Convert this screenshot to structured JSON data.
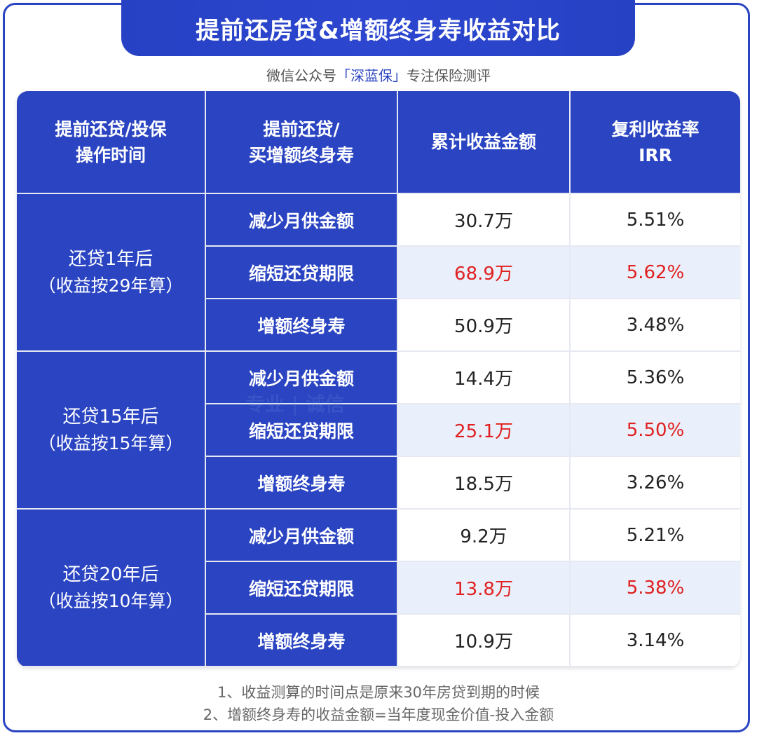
{
  "title": "提前还房贷&增额终身寿收益对比",
  "subtitle": {
    "prefix": "微信公众号",
    "brand": "「深蓝保」",
    "suffix": "专注保险测评"
  },
  "watermark": "专业 | 诚信",
  "headers": [
    [
      "提前还贷/投保",
      "操作时间"
    ],
    [
      "提前还贷/",
      "买增额终身寿"
    ],
    [
      "累计收益金额"
    ],
    [
      "复利收益率",
      "IRR"
    ]
  ],
  "groups": [
    {
      "title": "还贷1年后",
      "sub": "（收益按29年算）",
      "rows": [
        {
          "op": "减少月供金额",
          "amount": "30.7万",
          "irr": "5.51%"
        },
        {
          "op": "缩短还贷期限",
          "amount": "68.9万",
          "irr": "5.62%"
        },
        {
          "op": "增额终身寿",
          "amount": "50.9万",
          "irr": "3.48%"
        }
      ]
    },
    {
      "title": "还贷15年后",
      "sub": "（收益按15年算）",
      "rows": [
        {
          "op": "减少月供金额",
          "amount": "14.4万",
          "irr": "5.36%"
        },
        {
          "op": "缩短还贷期限",
          "amount": "25.1万",
          "irr": "5.50%"
        },
        {
          "op": "增额终身寿",
          "amount": "18.5万",
          "irr": "3.26%"
        }
      ]
    },
    {
      "title": "还贷20年后",
      "sub": "（收益按10年算）",
      "rows": [
        {
          "op": "减少月供金额",
          "amount": "9.2万",
          "irr": "5.21%"
        },
        {
          "op": "缩短还贷期限",
          "amount": "13.8万",
          "irr": "5.38%"
        },
        {
          "op": "增额终身寿",
          "amount": "10.9万",
          "irr": "3.14%"
        }
      ]
    }
  ],
  "notes": [
    "1、收益测算的时间点是原来30年房贷到期的时候",
    "2、增额终身寿的收益金额=当年度现金价值-投入金额"
  ],
  "colors": {
    "primary": "#2a44c2",
    "highlight_row": "#e9f0fb",
    "highlight_text": "#e02020"
  }
}
